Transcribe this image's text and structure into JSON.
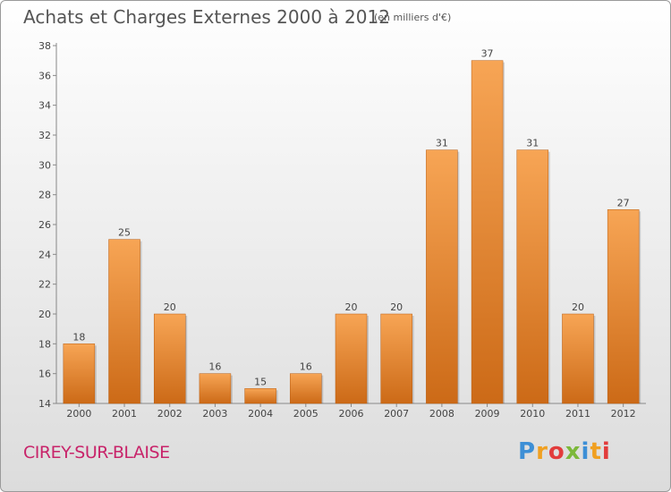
{
  "chart_data": {
    "type": "bar",
    "title": "Achats et Charges Externes 2000 à 2012",
    "subtitle": "(en milliers d'€)",
    "categories": [
      "2000",
      "2001",
      "2002",
      "2003",
      "2004",
      "2005",
      "2006",
      "2007",
      "2008",
      "2009",
      "2010",
      "2011",
      "2012"
    ],
    "values": [
      18,
      25,
      20,
      16,
      15,
      16,
      20,
      20,
      31,
      37,
      31,
      20,
      27
    ],
    "ylim": [
      14,
      38
    ],
    "yticks": [
      14,
      16,
      18,
      20,
      22,
      24,
      26,
      28,
      30,
      32,
      34,
      36,
      38
    ],
    "grid": false,
    "bar_color_top": "#f7a555",
    "bar_color_bottom": "#cc6a17"
  },
  "footer": {
    "commune": "CIREY-SUR-BLAISE",
    "brand_letters": [
      "P",
      "r",
      "o",
      "x",
      "i",
      "t",
      "i"
    ]
  }
}
